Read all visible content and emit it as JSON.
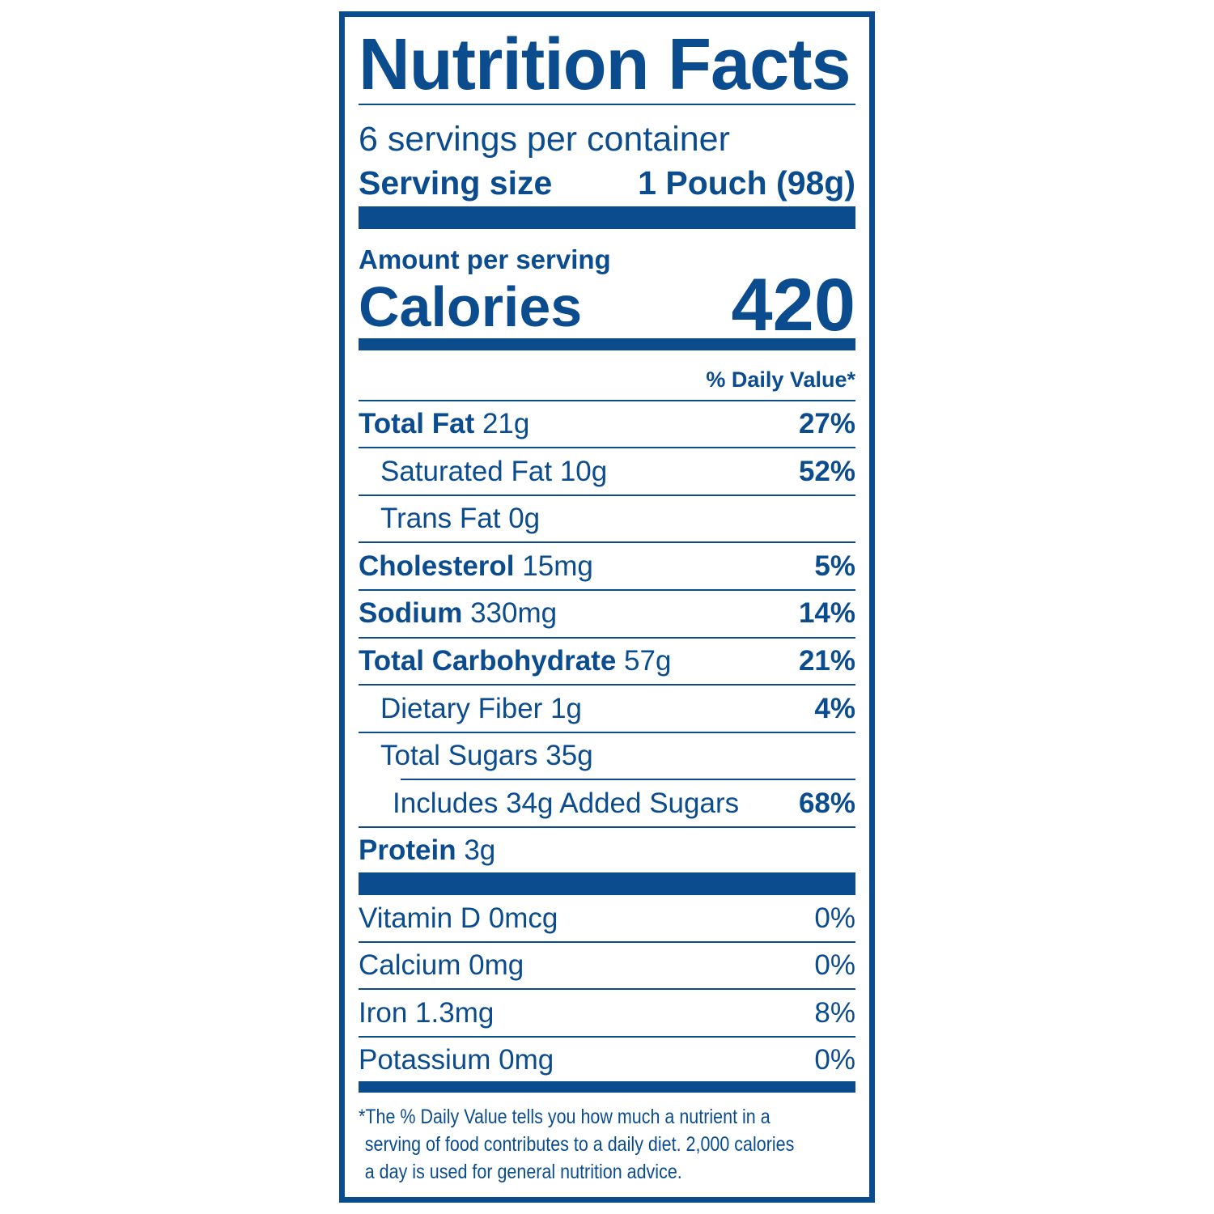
{
  "title": "Nutrition Facts",
  "servings_per_container": "6 servings per container",
  "serving_size": {
    "label": "Serving size",
    "value": "1 Pouch (98g)"
  },
  "amount_per_serving": "Amount per serving",
  "calories": {
    "label": "Calories",
    "value": "420"
  },
  "dv_header": "% Daily Value*",
  "nutrients": [
    {
      "name": "Total Fat",
      "amount": "21g",
      "dv": "27%"
    },
    {
      "name": "Saturated Fat",
      "amount": "10g",
      "dv": "52%"
    },
    {
      "name": "Trans Fat",
      "amount": "0g",
      "dv": ""
    },
    {
      "name": "Cholesterol",
      "amount": "15mg",
      "dv": "5%"
    },
    {
      "name": "Sodium",
      "amount": "330mg",
      "dv": "14%"
    },
    {
      "name": "Total Carbohydrate",
      "amount": "57g",
      "dv": "21%"
    },
    {
      "name": "Dietary Fiber",
      "amount": "1g",
      "dv": "4%"
    },
    {
      "name": "Total Sugars",
      "amount": "35g",
      "dv": ""
    },
    {
      "name": "Includes 34g Added Sugars",
      "amount": "",
      "dv": "68%"
    },
    {
      "name": "Protein",
      "amount": "3g",
      "dv": ""
    }
  ],
  "vitamins": [
    {
      "text": "Vitamin D 0mcg",
      "dv": "0%"
    },
    {
      "text": "Calcium 0mg",
      "dv": "0%"
    },
    {
      "text": "Iron 1.3mg",
      "dv": "8%"
    },
    {
      "text": "Potassium 0mg",
      "dv": "0%"
    }
  ],
  "footnote": [
    "*The % Daily Value tells you how much a nutrient in a",
    "serving of food contributes to a daily diet. 2,000 calories",
    "a day is used for general nutrition advice."
  ],
  "colors": {
    "label": "#0b4c8f"
  }
}
